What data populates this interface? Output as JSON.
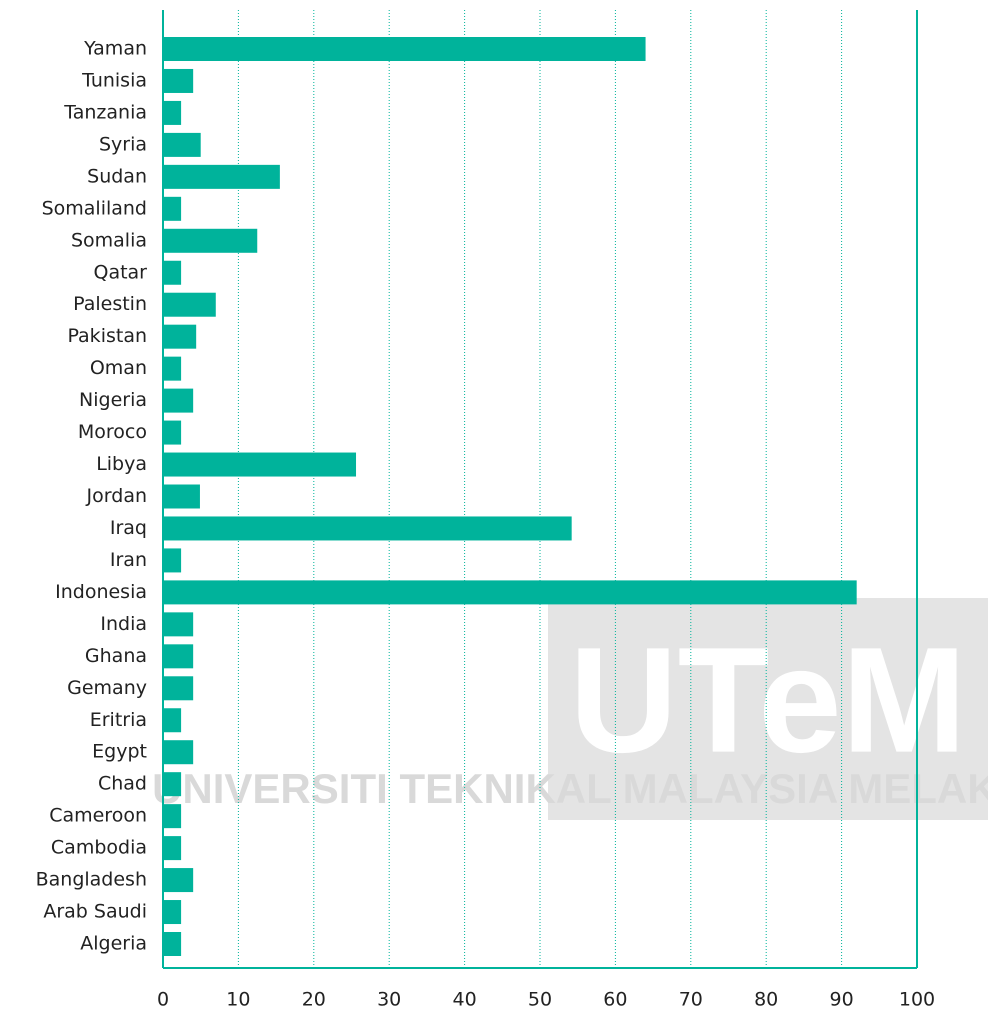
{
  "chart_data": {
    "type": "bar",
    "orientation": "horizontal",
    "categories": [
      "Yaman",
      "Tunisia",
      "Tanzania",
      "Syria",
      "Sudan",
      "Somaliland",
      "Somalia",
      "Qatar",
      "Palestin",
      "Pakistan",
      "Oman",
      "Nigeria",
      "Moroco",
      "Libya",
      "Jordan",
      "Iraq",
      "Iran",
      "Indonesia",
      "India",
      "Ghana",
      "Gemany",
      "Eritria",
      "Egypt",
      "Chad",
      "Cameroon",
      "Cambodia",
      "Bangladesh",
      "Arab Saudi",
      "Algeria"
    ],
    "values": [
      64,
      4,
      2.4,
      5,
      15.5,
      2.4,
      12.5,
      2.4,
      7,
      4.4,
      2.4,
      4,
      2.4,
      25.6,
      4.9,
      54.2,
      2.4,
      92,
      4,
      4,
      4,
      2.4,
      4,
      2.4,
      2.4,
      2.4,
      4,
      2.4,
      2.4
    ],
    "color": "#00b39b",
    "xlim": [
      0,
      100
    ],
    "xticks": [
      0,
      10,
      20,
      30,
      40,
      50,
      60,
      70,
      80,
      90,
      100
    ],
    "grid": true,
    "watermark": {
      "logo": "UTeM",
      "name": "UNIVERSITI TEKNIKAL MALAYSIA MELAKA"
    }
  }
}
